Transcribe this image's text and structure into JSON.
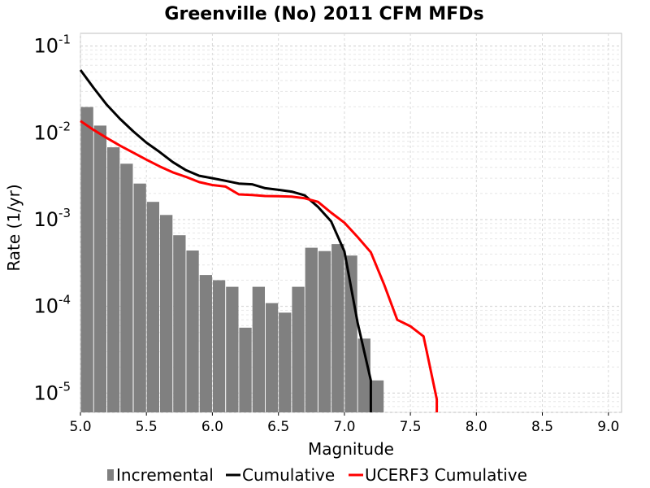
{
  "chart_data": {
    "type": "bar",
    "title": "Greenville (No) 2011 CFM MFDs",
    "xlabel": "Magnitude",
    "ylabel": "Rate (1/yr)",
    "xlim": [
      5.0,
      9.1
    ],
    "ylog": true,
    "ylim": [
      6e-06,
      0.14
    ],
    "grid": true,
    "legend_position": "bottom",
    "x_ticks": [
      "5.0",
      "5.5",
      "6.0",
      "6.5",
      "7.0",
      "7.5",
      "8.0",
      "8.5",
      "9.0"
    ],
    "y_ticks": [
      {
        "base": "10",
        "exp": "-1"
      },
      {
        "base": "10",
        "exp": "-2"
      },
      {
        "base": "10",
        "exp": "-3"
      },
      {
        "base": "10",
        "exp": "-4"
      },
      {
        "base": "10",
        "exp": "-5"
      }
    ],
    "series": [
      {
        "name": "Incremental",
        "type": "bar",
        "color": "#808080",
        "x": [
          5.05,
          5.15,
          5.25,
          5.35,
          5.45,
          5.55,
          5.65,
          5.75,
          5.85,
          5.95,
          6.05,
          6.15,
          6.25,
          6.35,
          6.45,
          6.55,
          6.65,
          6.75,
          6.85,
          6.95,
          7.05,
          7.15,
          7.25
        ],
        "values": [
          0.0198,
          0.0121,
          0.0068,
          0.0044,
          0.0026,
          0.0016,
          0.00113,
          0.00066,
          0.00044,
          0.00023,
          0.0002,
          0.000168,
          5.68e-05,
          0.000168,
          0.000109,
          8.45e-05,
          0.000168,
          0.000473,
          0.000433,
          0.000522,
          0.000385,
          4.25e-05,
          1.4e-05
        ]
      },
      {
        "name": "Cumulative",
        "type": "line",
        "color": "#000000",
        "x": [
          5.0,
          5.1,
          5.2,
          5.3,
          5.4,
          5.5,
          5.6,
          5.7,
          5.8,
          5.9,
          6.0,
          6.1,
          6.2,
          6.3,
          6.4,
          6.5,
          6.6,
          6.7,
          6.8,
          6.9,
          7.0,
          7.1,
          7.2,
          7.2
        ],
        "values": [
          0.053,
          0.033,
          0.021,
          0.0145,
          0.0104,
          0.0077,
          0.006,
          0.0046,
          0.0037,
          0.0032,
          0.003,
          0.0028,
          0.0026,
          0.00255,
          0.0023,
          0.0022,
          0.0021,
          0.0019,
          0.0014,
          0.00095,
          0.00043,
          6.5e-05,
          1.4e-05,
          6e-06
        ]
      },
      {
        "name": "UCERF3 Cumulative",
        "type": "line",
        "color": "#ff0000",
        "x": [
          5.0,
          5.1,
          5.2,
          5.3,
          5.4,
          5.5,
          5.6,
          5.7,
          5.8,
          5.9,
          6.0,
          6.1,
          6.2,
          6.3,
          6.4,
          6.5,
          6.6,
          6.7,
          6.8,
          6.9,
          7.0,
          7.1,
          7.2,
          7.3,
          7.4,
          7.5,
          7.6,
          7.7,
          7.7
        ],
        "values": [
          0.0137,
          0.0108,
          0.0087,
          0.0071,
          0.0059,
          0.0049,
          0.0041,
          0.0035,
          0.0031,
          0.0027,
          0.0025,
          0.0024,
          0.00195,
          0.00192,
          0.00187,
          0.00186,
          0.00184,
          0.00176,
          0.0016,
          0.0012,
          0.00092,
          0.00063,
          0.00042,
          0.00018,
          7e-05,
          5.9e-05,
          4.5e-05,
          8.5e-06,
          6e-06
        ]
      }
    ]
  }
}
